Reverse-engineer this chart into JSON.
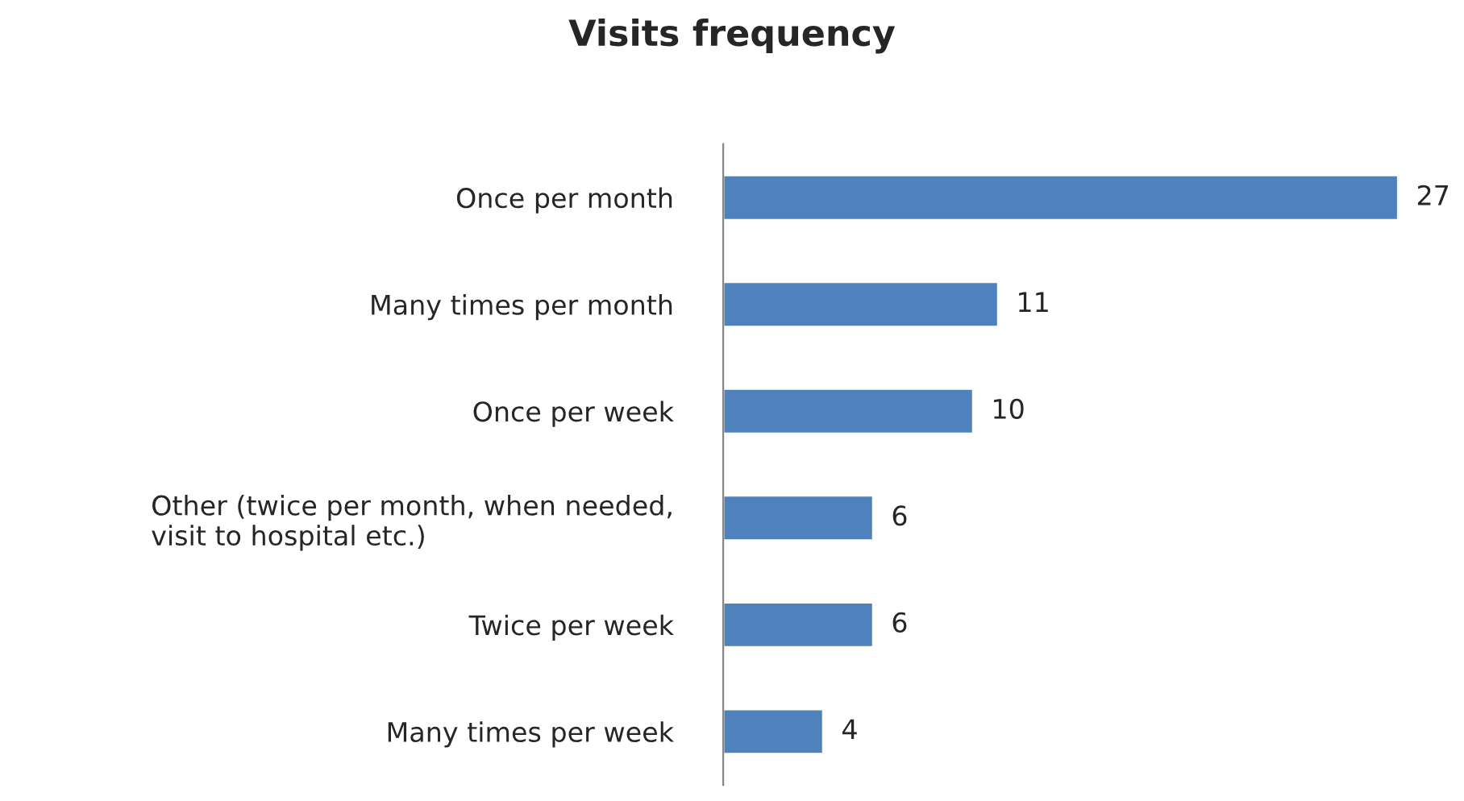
{
  "chart_data": {
    "type": "bar",
    "orientation": "horizontal",
    "title": "Visits frequency",
    "categories": [
      "Once per month",
      "Many times per month",
      "Once per week",
      "Other (twice per month, when needed,\nvisit to hospital etc.)",
      "Twice per week",
      "Many times per week"
    ],
    "values": [
      27,
      11,
      10,
      6,
      6,
      4
    ],
    "color": "#4f81bd",
    "data_labels": true,
    "grid": false,
    "legend": false,
    "tick_labels": "y"
  }
}
